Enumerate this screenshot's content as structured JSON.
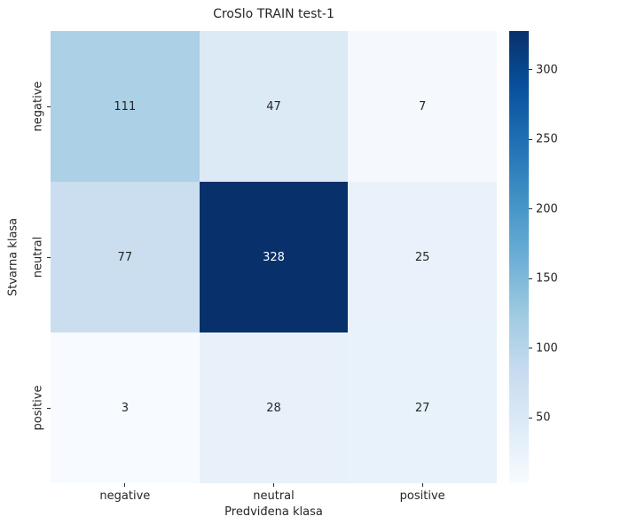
{
  "chart_data": {
    "type": "heatmap",
    "title": "CroSlo TRAIN test-1",
    "xlabel": "Predviđena klasa",
    "ylabel": "Stvarna klasa",
    "x_categories": [
      "negative",
      "neutral",
      "positive"
    ],
    "y_categories": [
      "negative",
      "neutral",
      "positive"
    ],
    "values": [
      [
        111,
        47,
        7
      ],
      [
        77,
        328,
        25
      ],
      [
        3,
        28,
        27
      ]
    ],
    "vmin": 3,
    "vmax": 328,
    "colormap": "Blues",
    "colorbar_ticks": [
      50,
      100,
      150,
      200,
      250,
      300
    ],
    "colormap_stops": [
      "#f7fbff",
      "#deebf7",
      "#c6dbef",
      "#9ecae1",
      "#6baed6",
      "#4292c6",
      "#2171b5",
      "#08519c",
      "#08306b"
    ],
    "annotation_dark_color": "#262626",
    "annotation_light_color": "#ffffff",
    "grid": false,
    "legend_position": "colorbar-right"
  }
}
